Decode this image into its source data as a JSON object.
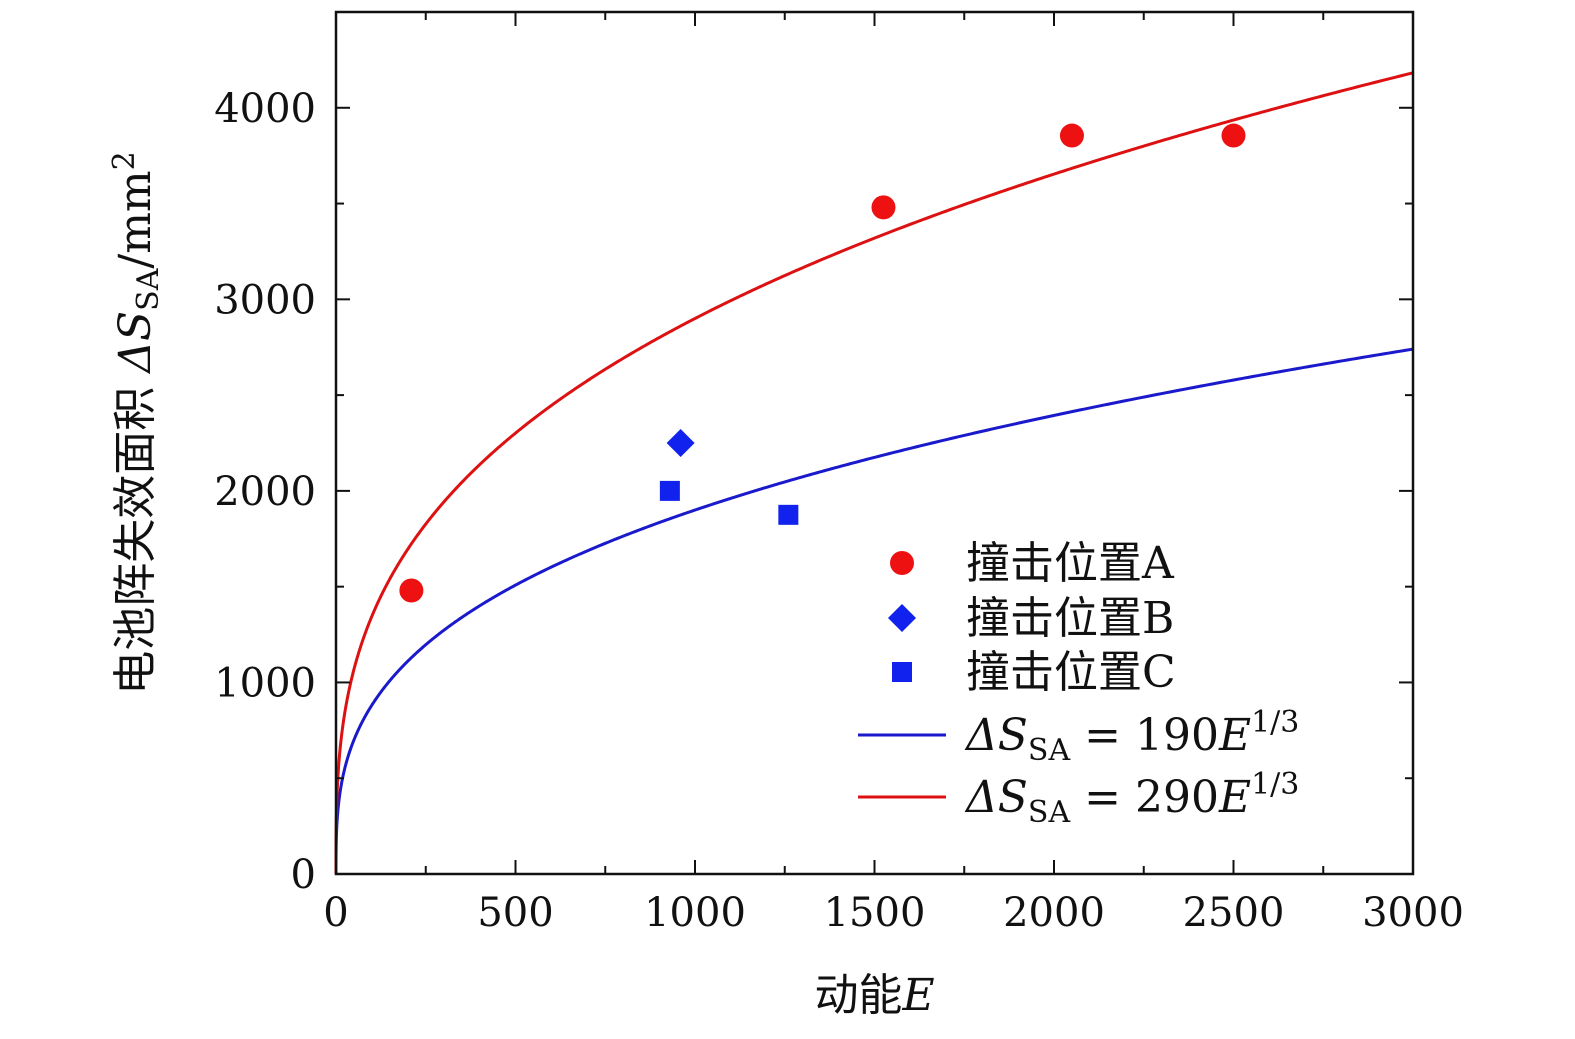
{
  "chart_data": {
    "type": "scatter",
    "xlabel_prefix": "动能",
    "xlabel_var": "E",
    "ylabel_prefix": "电池阵失效面积 ",
    "ylabel_symbol": "ΔS",
    "ylabel_sub": "SA",
    "ylabel_suffix": "/mm",
    "ylabel_sup": "2",
    "xlim": [
      0,
      3000
    ],
    "ylim": [
      0,
      4500
    ],
    "xticks": [
      0,
      500,
      1000,
      1500,
      2000,
      2500,
      3000
    ],
    "yticks": [
      0,
      1000,
      2000,
      3000,
      4000
    ],
    "grid": false,
    "legend_position": "bottom-right",
    "series": [
      {
        "name": "撞击位置A",
        "kind": "points",
        "marker": "circle",
        "color": "#ee1111",
        "points": [
          [
            210,
            1480
          ],
          [
            1525,
            3480
          ],
          [
            2050,
            3855
          ],
          [
            2500,
            3855
          ]
        ]
      },
      {
        "name": "撞击位置B",
        "kind": "points",
        "marker": "diamond",
        "color": "#1122ee",
        "points": [
          [
            960,
            2250
          ]
        ]
      },
      {
        "name": "撞击位置C",
        "kind": "points",
        "marker": "square",
        "color": "#1122ee",
        "points": [
          [
            930,
            2000
          ],
          [
            1260,
            1875
          ]
        ]
      },
      {
        "name": "ΔS_SA = 190E^(1/3)",
        "kind": "curve",
        "color": "#1a1acc",
        "coefficient": 190,
        "exponent": 0.3333333333,
        "label": {
          "lhs": "ΔS",
          "sub": "SA",
          "mid": " = 190",
          "var": "E",
          "sup": "1/3"
        }
      },
      {
        "name": "ΔS_SA = 290E^(1/3)",
        "kind": "curve",
        "color": "#dd1111",
        "coefficient": 290,
        "exponent": 0.3333333333,
        "label": {
          "lhs": "ΔS",
          "sub": "SA",
          "mid": " = 290",
          "var": "E",
          "sup": "1/3"
        }
      }
    ]
  }
}
